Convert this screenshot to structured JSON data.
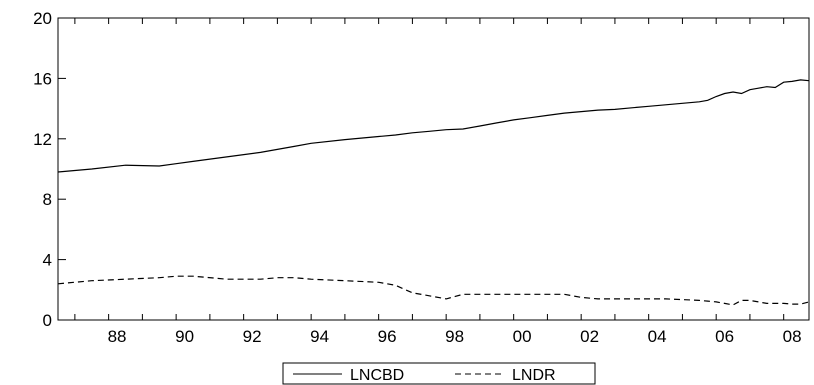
{
  "chart_data": {
    "type": "line",
    "title": "",
    "xlabel": "",
    "ylabel": "",
    "x_tick_labels": [
      "88",
      "90",
      "92",
      "94",
      "96",
      "98",
      "00",
      "02",
      "04",
      "06",
      "08"
    ],
    "x_tick_years": [
      1988,
      1990,
      1992,
      1994,
      1996,
      1998,
      2000,
      2002,
      2004,
      2006,
      2008
    ],
    "xlim": [
      1986.5,
      2008.75
    ],
    "ylim": [
      0,
      20
    ],
    "y_ticks": [
      0,
      4,
      8,
      12,
      16,
      20
    ],
    "grid": false,
    "legend_position": "bottom-center",
    "x": [
      1986.5,
      1987.5,
      1988.5,
      1989.5,
      1990.0,
      1990.5,
      1991.5,
      1992.5,
      1993.0,
      1993.5,
      1994.0,
      1995.0,
      1996.0,
      1996.5,
      1997.0,
      1997.5,
      1998.0,
      1998.5,
      1999.0,
      1999.5,
      2000.0,
      2000.5,
      2001.0,
      2001.5,
      2002.0,
      2002.5,
      2003.0,
      2003.5,
      2004.0,
      2004.5,
      2005.0,
      2005.5,
      2005.75,
      2006.0,
      2006.25,
      2006.5,
      2006.75,
      2007.0,
      2007.25,
      2007.5,
      2007.75,
      2008.0,
      2008.25,
      2008.5,
      2008.75
    ],
    "series": [
      {
        "name": "LNCBD",
        "style": "solid",
        "color": "#000000",
        "values": [
          9.8,
          10.0,
          10.25,
          10.2,
          10.35,
          10.5,
          10.8,
          11.1,
          11.3,
          11.5,
          11.7,
          11.95,
          12.15,
          12.25,
          12.4,
          12.5,
          12.6,
          12.65,
          12.85,
          13.05,
          13.25,
          13.4,
          13.55,
          13.7,
          13.8,
          13.9,
          13.95,
          14.05,
          14.15,
          14.25,
          14.35,
          14.45,
          14.55,
          14.8,
          15.0,
          15.1,
          15.0,
          15.25,
          15.35,
          15.45,
          15.4,
          15.75,
          15.8,
          15.9,
          15.85
        ]
      },
      {
        "name": "LNDR",
        "style": "dashed",
        "color": "#000000",
        "values": [
          2.4,
          2.6,
          2.7,
          2.8,
          2.9,
          2.9,
          2.7,
          2.7,
          2.8,
          2.8,
          2.7,
          2.6,
          2.5,
          2.3,
          1.8,
          1.6,
          1.4,
          1.7,
          1.7,
          1.7,
          1.7,
          1.7,
          1.7,
          1.7,
          1.5,
          1.4,
          1.4,
          1.4,
          1.4,
          1.4,
          1.35,
          1.3,
          1.25,
          1.2,
          1.1,
          1.0,
          1.3,
          1.3,
          1.2,
          1.1,
          1.1,
          1.1,
          1.05,
          1.05,
          1.2
        ]
      }
    ]
  }
}
